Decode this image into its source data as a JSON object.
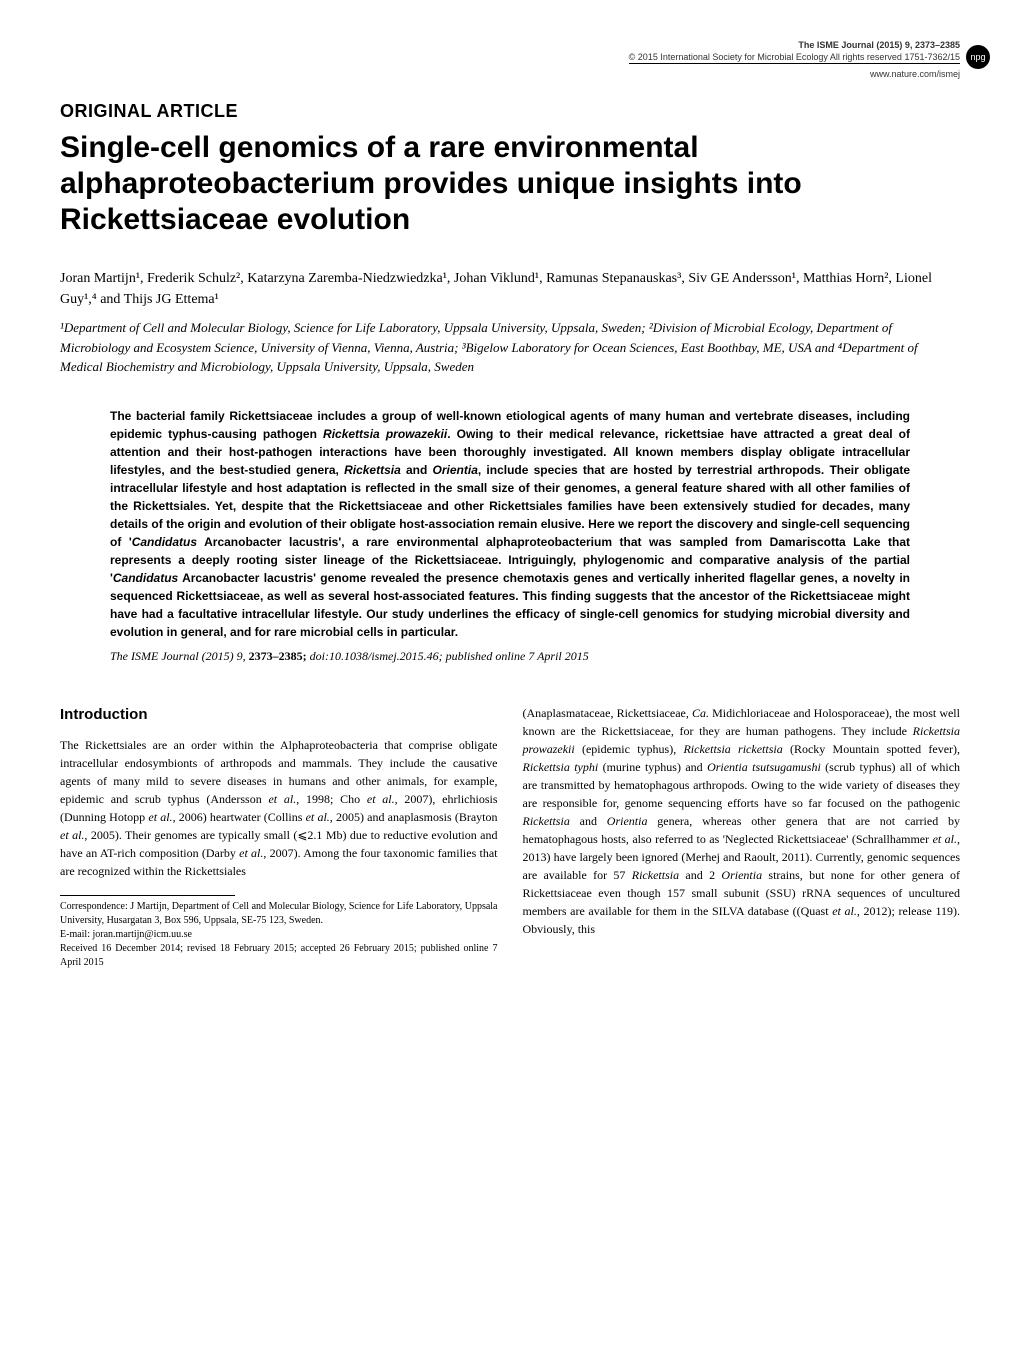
{
  "header": {
    "journal_title": "The ISME Journal (2015) 9, 2373–2385",
    "copyright": "© 2015 International Society for Microbial Ecology  All rights reserved 1751-7362/15",
    "url": "www.nature.com/ismej",
    "npg_label": "npg"
  },
  "article": {
    "type": "ORIGINAL ARTICLE",
    "title": "Single-cell genomics of a rare environmental alphaproteobacterium provides unique insights into Rickettsiaceae evolution",
    "authors": "Joran Martijn¹, Frederik Schulz², Katarzyna Zaremba-Niedzwiedzka¹, Johan Viklund¹, Ramunas Stepanauskas³, Siv GE Andersson¹, Matthias Horn², Lionel Guy¹,⁴ and Thijs JG Ettema¹",
    "affiliations": "¹Department of Cell and Molecular Biology, Science for Life Laboratory, Uppsala University, Uppsala, Sweden; ²Division of Microbial Ecology, Department of Microbiology and Ecosystem Science, University of Vienna, Vienna, Austria; ³Bigelow Laboratory for Ocean Sciences, East Boothbay, ME, USA and ⁴Department of Medical Biochemistry and Microbiology, Uppsala University, Uppsala, Sweden"
  },
  "abstract": {
    "text": "The bacterial family Rickettsiaceae includes a group of well-known etiological agents of many human and vertebrate diseases, including epidemic typhus-causing pathogen Rickettsia prowazekii. Owing to their medical relevance, rickettsiae have attracted a great deal of attention and their host-pathogen interactions have been thoroughly investigated. All known members display obligate intracellular lifestyles, and the best-studied genera, Rickettsia and Orientia, include species that are hosted by terrestrial arthropods. Their obligate intracellular lifestyle and host adaptation is reflected in the small size of their genomes, a general feature shared with all other families of the Rickettsiales. Yet, despite that the Rickettsiaceae and other Rickettsiales families have been extensively studied for decades, many details of the origin and evolution of their obligate host-association remain elusive. Here we report the discovery and single-cell sequencing of 'Candidatus Arcanobacter lacustris', a rare environmental alphaproteobacterium that was sampled from Damariscotta Lake that represents a deeply rooting sister lineage of the Rickettsiaceae. Intriguingly, phylogenomic and comparative analysis of the partial 'Candidatus Arcanobacter lacustris' genome revealed the presence chemotaxis genes and vertically inherited flagellar genes, a novelty in sequenced Rickettsiaceae, as well as several host-associated features. This finding suggests that the ancestor of the Rickettsiaceae might have had a facultative intracellular lifestyle. Our study underlines the efficacy of single-cell genomics for studying microbial diversity and evolution in general, and for rare microbial cells in particular."
  },
  "citation": {
    "journal": "The ISME Journal",
    "year_vol": "(2015) 9,",
    "pages": "2373–2385;",
    "doi": "doi:10.1038/ismej.2015.46;",
    "pub_date": "published online 7 April 2015"
  },
  "introduction": {
    "heading": "Introduction",
    "paragraph1": "The Rickettsiales are an order within the Alphaproteobacteria that comprise obligate intracellular endosymbionts of arthropods and mammals. They include the causative agents of many mild to severe diseases in humans and other animals, for example, epidemic and scrub typhus (Andersson et al., 1998; Cho et al., 2007), ehrlichiosis (Dunning Hotopp et al., 2006) heartwater (Collins et al., 2005) and anaplasmosis (Brayton et al., 2005). Their genomes are typically small (⩽2.1 Mb) due to reductive evolution and have an AT-rich composition (Darby et al., 2007). Among the four taxonomic families that are recognized within the Rickettsiales",
    "paragraph2": "(Anaplasmataceae, Rickettsiaceae, Ca. Midichloriaceae and Holosporaceae), the most well known are the Rickettsiaceae, for they are human pathogens. They include Rickettsia prowazekii (epidemic typhus), Rickettsia rickettsia (Rocky Mountain spotted fever), Rickettsia typhi (murine typhus) and Orientia tsutsugamushi (scrub typhus) all of which are transmitted by hematophagous arthropods. Owing to the wide variety of diseases they are responsible for, genome sequencing efforts have so far focused on the pathogenic Rickettsia and Orientia genera, whereas other genera that are not carried by hematophagous hosts, also referred to as 'Neglected Rickettsiaceae' (Schrallhammer et al., 2013) have largely been ignored (Merhej and Raoult, 2011). Currently, genomic sequences are available for 57 Rickettsia and 2 Orientia strains, but none for other genera of Rickettsiaceae even though 157 small subunit (SSU) rRNA sequences of uncultured members are available for them in the SILVA database ((Quast et al., 2012); release 119). Obviously, this"
  },
  "correspondence": {
    "text1": "Correspondence: J Martijn, Department of Cell and Molecular Biology, Science for Life Laboratory, Uppsala University, Husargatan 3, Box 596, Uppsala, SE-75 123, Sweden.",
    "email": "E-mail: joran.martijn@icm.uu.se",
    "received": "Received 16 December 2014; revised 18 February 2015; accepted 26 February 2015; published online 7 April 2015"
  },
  "styling": {
    "background_color": "#ffffff",
    "text_color": "#000000",
    "npg_badge_bg": "#000000",
    "npg_badge_color": "#ffffff",
    "body_fontsize": 12,
    "title_fontsize": 30,
    "heading_fontsize": 15,
    "abstract_fontsize": 12,
    "header_fontsize": 9,
    "correspondence_fontsize": 10
  }
}
